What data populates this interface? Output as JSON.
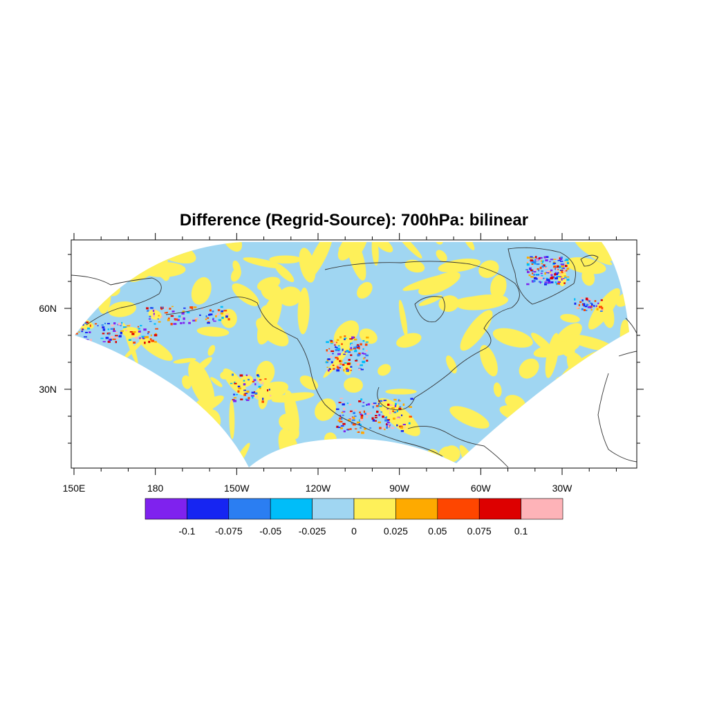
{
  "title": "Difference (Regrid-Source): 700hPa: bilinear",
  "map": {
    "lon_range": [
      150,
      359
    ],
    "lat_range": [
      0,
      80
    ],
    "x_tick_labels": [
      {
        "lon": 150,
        "label": "150E"
      },
      {
        "lon": 180,
        "label": "180"
      },
      {
        "lon": 210,
        "label": "150W"
      },
      {
        "lon": 240,
        "label": "120W"
      },
      {
        "lon": 270,
        "label": "90W"
      },
      {
        "lon": 300,
        "label": "60W"
      },
      {
        "lon": 330,
        "label": "30W"
      }
    ],
    "y_tick_labels": [
      {
        "lat": 60,
        "label": "60N"
      },
      {
        "lat": 30,
        "label": "30N"
      }
    ],
    "field_colors": {
      "background_negative": "#a0d6f2",
      "background_positive": "#fef059"
    }
  },
  "colorbar": {
    "colors": [
      "#7f22ee",
      "#1625f2",
      "#2b7ef2",
      "#00bdf9",
      "#a0d6f2",
      "#fef059",
      "#feaa00",
      "#fe4600",
      "#dd0000",
      "#feb3b8"
    ],
    "labels": [
      "-0.1",
      "-0.075",
      "-0.05",
      "-0.025",
      "0",
      "0.025",
      "0.05",
      "0.075",
      "0.1"
    ]
  }
}
